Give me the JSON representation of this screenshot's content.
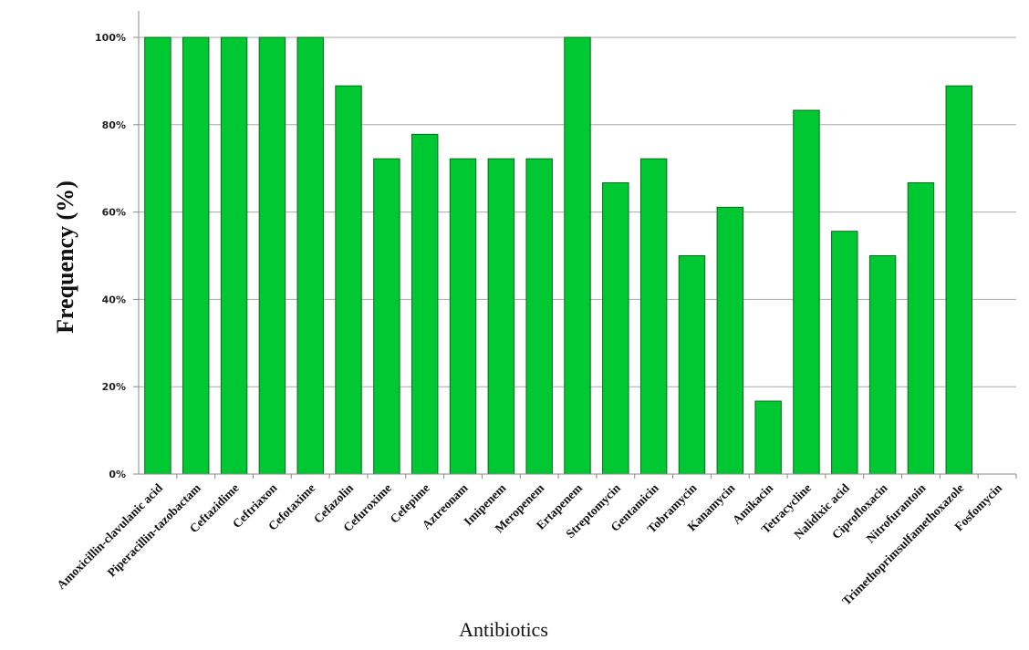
{
  "chart_data": {
    "type": "bar",
    "title": "",
    "xlabel": "Antibiotics",
    "ylabel": "Frequency (%)",
    "ylim": [
      0,
      100
    ],
    "yticks": [
      "0%",
      "20%",
      "40%",
      "60%",
      "80%",
      "100%"
    ],
    "grid": true,
    "legend": "none",
    "bar_color": "#00c832",
    "bar_border_color": "#0a6b1a",
    "categories": [
      "Amoxicillin-clavulanic acid",
      "Piperacillin-tazobactam",
      "Ceftazidime",
      "Ceftriaxon",
      "Cefotaxime",
      "Cefazolin",
      "Cefuroxime",
      "Cefepime",
      "Aztreonam",
      "Imipenem",
      "Meropenem",
      "Ertapenem",
      "Streptomycin",
      "Gentamicin",
      "Tobramycin",
      "Kanamycin",
      "Amikacin",
      "Tetracycline",
      "Nalidixic acid",
      "Ciprofloxacin",
      "Nitrofurantoin",
      "Trimethoprimsulfamethoxazole",
      "Fosfomycin"
    ],
    "values": [
      100,
      100,
      100,
      100,
      100,
      88.9,
      72.2,
      77.8,
      72.2,
      72.2,
      72.2,
      100,
      66.7,
      72.2,
      50,
      61.1,
      16.7,
      83.3,
      55.6,
      50,
      66.7,
      88.9,
      0
    ]
  }
}
